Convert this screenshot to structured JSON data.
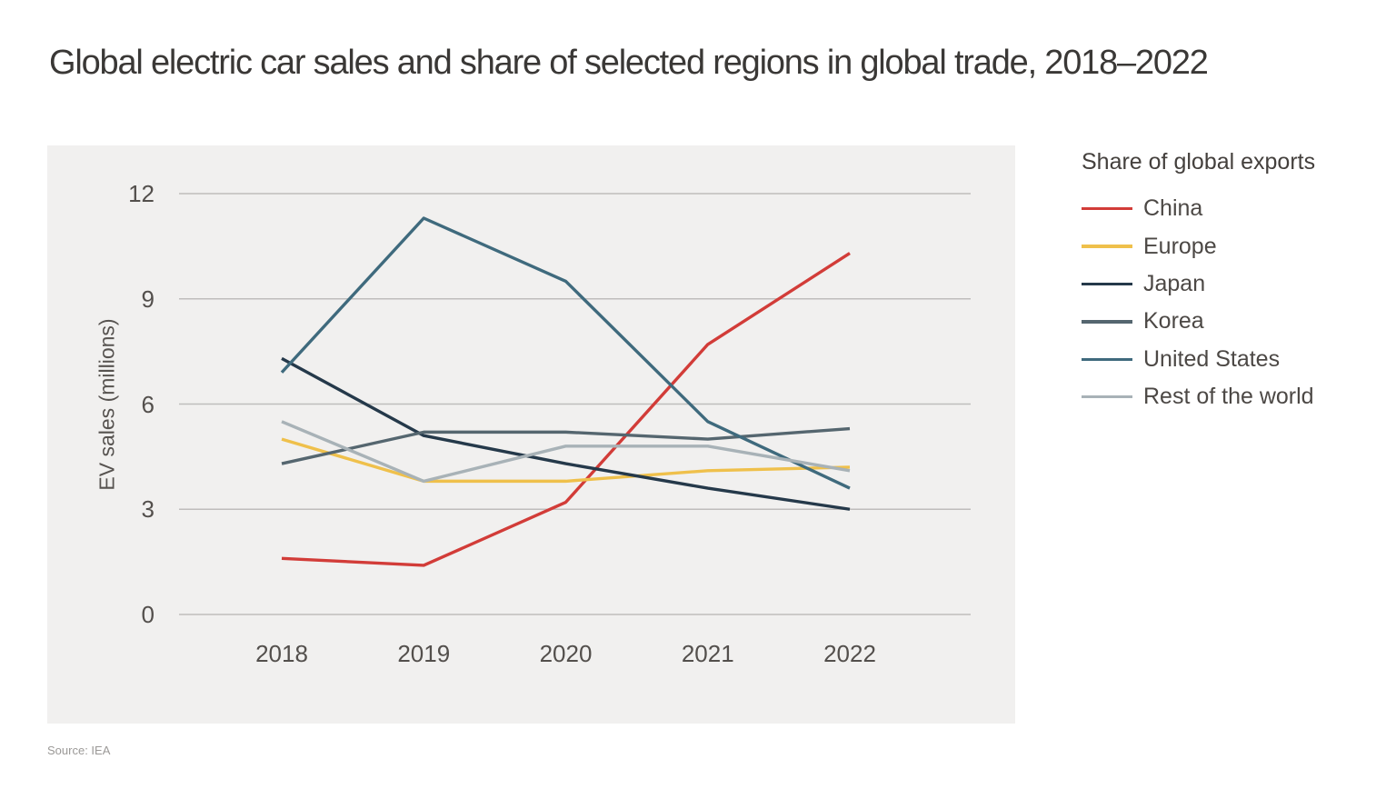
{
  "page": {
    "title": "Global electric car sales and share of selected regions in global trade, 2018–2022",
    "source": "Source: IEA"
  },
  "chart_data": {
    "type": "line",
    "title": "Global electric car sales and share of selected regions in global trade, 2018–2022",
    "xlabel": "",
    "ylabel": "EV sales (millions)",
    "categories": [
      "2018",
      "2019",
      "2020",
      "2021",
      "2022"
    ],
    "y_ticks": [
      0,
      3,
      6,
      9,
      12
    ],
    "ylim": [
      0,
      12
    ],
    "grid": "horizontal-only",
    "legend_title": "Share of global exports",
    "legend_position": "right",
    "plot_background": "#f1f0ef",
    "grid_color": "#bfbdbc",
    "series": [
      {
        "name": "China",
        "color": "#d23c38",
        "values": [
          1.6,
          1.4,
          3.2,
          7.7,
          10.3
        ]
      },
      {
        "name": "Europe",
        "color": "#efc04b",
        "values": [
          5.0,
          3.8,
          3.8,
          4.1,
          4.2
        ]
      },
      {
        "name": "Japan",
        "color": "#25394a",
        "values": [
          7.3,
          5.1,
          4.3,
          3.6,
          3.0
        ]
      },
      {
        "name": "Korea",
        "color": "#55666f",
        "values": [
          4.3,
          5.2,
          5.2,
          5.0,
          5.3
        ]
      },
      {
        "name": "United States",
        "color": "#3f6a7d",
        "values": [
          6.9,
          11.3,
          9.5,
          5.5,
          3.6
        ]
      },
      {
        "name": "Rest of the world",
        "color": "#a8b2b7",
        "values": [
          5.5,
          3.8,
          4.8,
          4.8,
          4.1
        ]
      }
    ]
  }
}
